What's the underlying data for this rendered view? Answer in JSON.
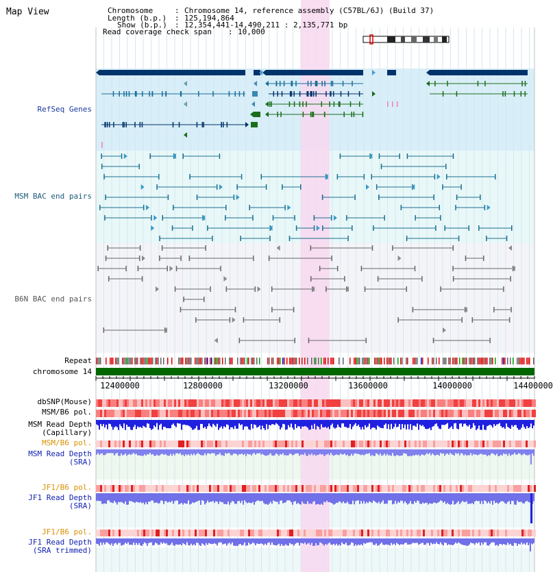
{
  "page_title": "Map View",
  "info": {
    "chromosome_label": "Chromosome",
    "chromosome_value": "Chromosome 14, reference assembly (C57BL/6J) (Build 37)",
    "length_label": "Length (b.p.)",
    "length_value": "125,194,864",
    "show_label": "Show (b.p.)",
    "show_value": "12,354,441-14,490,211 : 2,135,771 bp",
    "coverage_label": "Read coverage check span",
    "coverage_value": "10,000"
  },
  "tracks": {
    "refseq": "RefSeq Genes",
    "msm_bac": "MSM BAC end pairs",
    "b6n_bac": "B6N BAC end pairs",
    "repeat": "Repeat",
    "chromosome": "chromosome 14",
    "dbsnp": "dbSNP(Mouse)",
    "msm_pol1": "MSM/B6 pol.",
    "msm_depth_cap_1": "MSM Read Depth",
    "msm_depth_cap_2": "(Capillary)",
    "msm_pol2": "MSM/B6 pol.",
    "msm_depth_sra_1": "MSM Read Depth",
    "msm_depth_sra_2": "(SRA)",
    "jf1_pol1": "JF1/B6 pol.",
    "jf1_depth_sra_1": "JF1 Read Depth",
    "jf1_depth_sra_2": "(SRA)",
    "jf1_pol2": "JF1/B6 pol.",
    "jf1_depth_trim_1": "JF1 Read Depth",
    "jf1_depth_trim_2": "(SRA trimmed)"
  },
  "axis": {
    "ticks": [
      "12400000",
      "12800000",
      "13200000",
      "13600000",
      "14000000",
      "14400000"
    ]
  },
  "colors": {
    "highlight": "#f8d8f0",
    "refseq_bg": "#d8eef8",
    "msm_bg": "#e8f8f8",
    "b6n_bg": "#f4f4f8",
    "gene_dark": "#00336a",
    "gene_blue": "#1a6e9a",
    "gene_green": "#1a6e1a",
    "chromosome_bar": "#006600",
    "depth_blue": "#2020e0",
    "depth_light": "#8080ee"
  }
}
